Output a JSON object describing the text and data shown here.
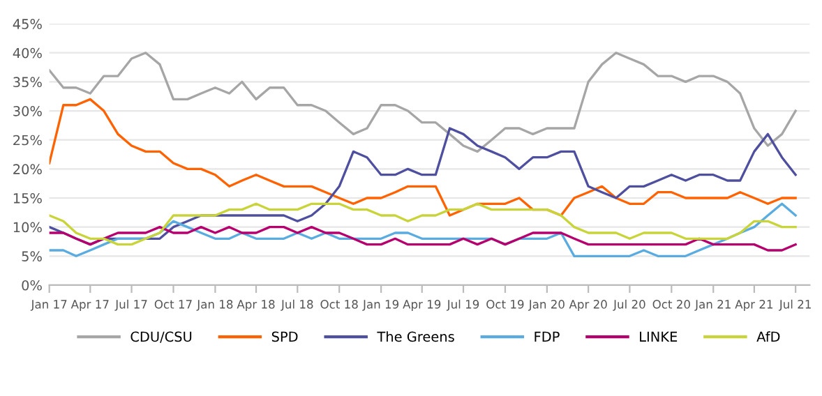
{
  "chart_data": {
    "type": "line",
    "x": [
      "2017-01",
      "2017-02",
      "2017-03",
      "2017-04",
      "2017-05",
      "2017-06",
      "2017-07",
      "2017-08",
      "2017-09",
      "2017-10",
      "2017-11",
      "2017-12",
      "2018-01",
      "2018-02",
      "2018-03",
      "2018-04",
      "2018-05",
      "2018-06",
      "2018-07",
      "2018-08",
      "2018-09",
      "2018-10",
      "2018-11",
      "2018-12",
      "2019-01",
      "2019-02",
      "2019-03",
      "2019-04",
      "2019-05",
      "2019-06",
      "2019-07",
      "2019-08",
      "2019-09",
      "2019-10",
      "2019-11",
      "2019-12",
      "2020-01",
      "2020-02",
      "2020-03",
      "2020-04",
      "2020-05",
      "2020-06",
      "2020-07",
      "2020-08",
      "2020-09",
      "2020-10",
      "2020-11",
      "2020-12",
      "2021-01",
      "2021-02",
      "2021-03",
      "2021-04",
      "2021-05",
      "2021-06",
      "2021-07"
    ],
    "series": [
      {
        "name": "CDU/CSU",
        "color": "#a6a6a6",
        "values": [
          37,
          34,
          34,
          33,
          36,
          36,
          39,
          40,
          38,
          32,
          32,
          33,
          34,
          33,
          35,
          32,
          34,
          34,
          31,
          31,
          30,
          28,
          26,
          27,
          31,
          31,
          30,
          28,
          28,
          26,
          24,
          23,
          25,
          27,
          27,
          26,
          27,
          27,
          27,
          35,
          38,
          40,
          39,
          38,
          36,
          36,
          35,
          36,
          36,
          35,
          33,
          27,
          24,
          26,
          30
        ]
      },
      {
        "name": "SPD",
        "color": "#ff6200",
        "values": [
          21,
          31,
          31,
          32,
          30,
          26,
          24,
          23,
          23,
          21,
          20,
          20,
          19,
          17,
          18,
          19,
          18,
          17,
          17,
          17,
          16,
          15,
          14,
          15,
          15,
          16,
          17,
          17,
          17,
          12,
          13,
          14,
          14,
          14,
          15,
          13,
          13,
          12,
          15,
          16,
          17,
          15,
          14,
          14,
          16,
          16,
          15,
          15,
          15,
          15,
          16,
          15,
          14,
          15,
          15
        ]
      },
      {
        "name": "The Greens",
        "color": "#4f4fa0",
        "values": [
          10,
          9,
          8,
          7,
          8,
          8,
          8,
          8,
          8,
          10,
          11,
          12,
          12,
          12,
          12,
          12,
          12,
          12,
          11,
          12,
          14,
          17,
          23,
          22,
          19,
          19,
          20,
          19,
          19,
          27,
          26,
          24,
          23,
          22,
          20,
          22,
          22,
          23,
          23,
          17,
          16,
          15,
          17,
          17,
          18,
          19,
          18,
          19,
          19,
          18,
          18,
          23,
          26,
          22,
          19
        ]
      },
      {
        "name": "FDP",
        "color": "#5aace0",
        "values": [
          6,
          6,
          5,
          6,
          7,
          8,
          8,
          8,
          9,
          11,
          10,
          9,
          8,
          8,
          9,
          8,
          8,
          8,
          9,
          8,
          9,
          8,
          8,
          8,
          8,
          9,
          9,
          8,
          8,
          8,
          8,
          8,
          8,
          7,
          8,
          8,
          8,
          9,
          5,
          5,
          5,
          5,
          5,
          6,
          5,
          5,
          5,
          6,
          7,
          8,
          9,
          10,
          12,
          14,
          12
        ]
      },
      {
        "name": "LINKE",
        "color": "#b5006e",
        "values": [
          9,
          9,
          8,
          7,
          8,
          9,
          9,
          9,
          10,
          9,
          9,
          10,
          9,
          10,
          9,
          9,
          10,
          10,
          9,
          10,
          9,
          9,
          8,
          7,
          7,
          8,
          7,
          7,
          7,
          7,
          8,
          7,
          8,
          7,
          8,
          9,
          9,
          9,
          8,
          7,
          7,
          7,
          7,
          7,
          7,
          7,
          7,
          8,
          7,
          7,
          7,
          7,
          6,
          6,
          7
        ]
      },
      {
        "name": "AfD",
        "color": "#c8d43a",
        "values": [
          12,
          11,
          9,
          8,
          8,
          7,
          7,
          8,
          9,
          12,
          12,
          12,
          12,
          13,
          13,
          14,
          13,
          13,
          13,
          14,
          14,
          14,
          13,
          13,
          12,
          12,
          11,
          12,
          12,
          13,
          13,
          14,
          13,
          13,
          13,
          13,
          13,
          12,
          10,
          9,
          9,
          9,
          8,
          9,
          9,
          9,
          8,
          8,
          8,
          8,
          9,
          11,
          11,
          10,
          10
        ]
      }
    ],
    "xlim": [
      "2017-01",
      "2021-08"
    ],
    "xticks": [
      {
        "value": "2017-01",
        "label": "Jan 17"
      },
      {
        "value": "2017-04",
        "label": "Apr 17"
      },
      {
        "value": "2017-07",
        "label": "Jul 17"
      },
      {
        "value": "2017-10",
        "label": "Oct 17"
      },
      {
        "value": "2018-01",
        "label": "Jan 18"
      },
      {
        "value": "2018-04",
        "label": "Apr 18"
      },
      {
        "value": "2018-07",
        "label": "Jul 18"
      },
      {
        "value": "2018-10",
        "label": "Oct 18"
      },
      {
        "value": "2019-01",
        "label": "Jan 19"
      },
      {
        "value": "2019-04",
        "label": "Apr 19"
      },
      {
        "value": "2019-07",
        "label": "Jul 19"
      },
      {
        "value": "2019-10",
        "label": "Oct 19"
      },
      {
        "value": "2020-01",
        "label": "Jan 20"
      },
      {
        "value": "2020-04",
        "label": "Apr 20"
      },
      {
        "value": "2020-07",
        "label": "Jul 20"
      },
      {
        "value": "2020-10",
        "label": "Oct 20"
      },
      {
        "value": "2021-01",
        "label": "Jan 21"
      },
      {
        "value": "2021-04",
        "label": "Apr 21"
      },
      {
        "value": "2021-07",
        "label": "Jul 21"
      }
    ],
    "ylim": [
      0,
      45
    ],
    "yticks": [
      {
        "value": 0,
        "label": "0%"
      },
      {
        "value": 5,
        "label": "5%"
      },
      {
        "value": 10,
        "label": "10%"
      },
      {
        "value": 15,
        "label": "15%"
      },
      {
        "value": 20,
        "label": "20%"
      },
      {
        "value": 25,
        "label": "25%"
      },
      {
        "value": 30,
        "label": "30%"
      },
      {
        "value": 35,
        "label": "35%"
      },
      {
        "value": 40,
        "label": "40%"
      },
      {
        "value": 45,
        "label": "45%"
      }
    ],
    "grid": "y",
    "legend": "bottom",
    "marker": "none",
    "line_style": "solid"
  }
}
